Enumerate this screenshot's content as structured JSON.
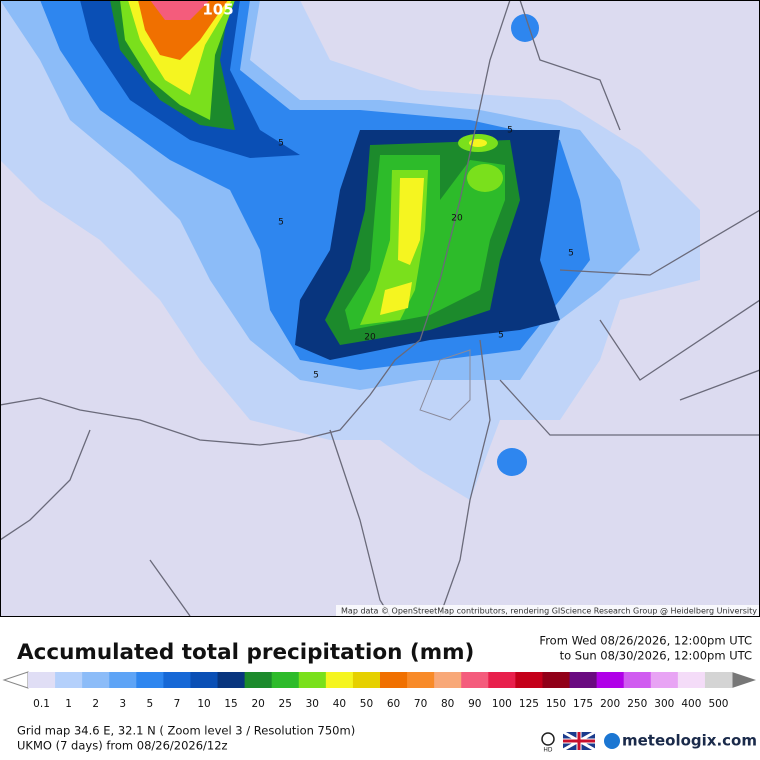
{
  "header": {
    "title": "Accumulated total precipitation (mm)",
    "period_from": "From Wed 08/26/2026, 12:00pm UTC",
    "period_to": "to Sun 08/30/2026, 12:00pm UTC"
  },
  "map": {
    "attribution": "Map data © OpenStreetMap contributors, rendering GIScience Research Group @ Heidelberg University",
    "contour_labels": [
      "105",
      "5",
      "5",
      "5",
      "20",
      "5",
      "20",
      "5",
      "5"
    ]
  },
  "legend": {
    "items": [
      {
        "label": "0.1",
        "color": "#e0def5"
      },
      {
        "label": "1",
        "color": "#b4d0fb"
      },
      {
        "label": "2",
        "color": "#8cbcf8"
      },
      {
        "label": "3",
        "color": "#5ea4f6"
      },
      {
        "label": "5",
        "color": "#2e86ef"
      },
      {
        "label": "7",
        "color": "#1668d6"
      },
      {
        "label": "10",
        "color": "#0a4fb5"
      },
      {
        "label": "15",
        "color": "#08357e"
      },
      {
        "label": "20",
        "color": "#1c8a2c"
      },
      {
        "label": "25",
        "color": "#2dbb2a"
      },
      {
        "label": "30",
        "color": "#7ae01c"
      },
      {
        "label": "40",
        "color": "#f5f520"
      },
      {
        "label": "50",
        "color": "#e6d000"
      },
      {
        "label": "60",
        "color": "#f07000"
      },
      {
        "label": "70",
        "color": "#f88a28"
      },
      {
        "label": "80",
        "color": "#f8a878"
      },
      {
        "label": "90",
        "color": "#f45c7c"
      },
      {
        "label": "100",
        "color": "#e8204c"
      },
      {
        "label": "125",
        "color": "#c4001a"
      },
      {
        "label": "150",
        "color": "#900018"
      },
      {
        "label": "175",
        "color": "#6a0a80"
      },
      {
        "label": "200",
        "color": "#b000e8"
      },
      {
        "label": "250",
        "color": "#d05cf0"
      },
      {
        "label": "300",
        "color": "#e8a4f4"
      },
      {
        "label": "400",
        "color": "#f4dcf8"
      },
      {
        "label": "500",
        "color": "#d4d4d4"
      }
    ]
  },
  "footer": {
    "grid": "Grid map 34.6 E, 32.1 N ( Zoom level 3 / Resolution 750m)",
    "model": "UKMO (7 days) from  08/26/2026/12z",
    "hd": "HD",
    "brand": "meteologix.com"
  }
}
